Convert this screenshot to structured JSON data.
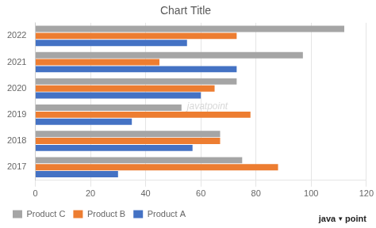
{
  "chart_data": {
    "type": "bar",
    "orientation": "horizontal",
    "title": "Chart Title",
    "categories": [
      "2017",
      "2018",
      "2019",
      "2020",
      "2021",
      "2022"
    ],
    "series": [
      {
        "name": "Product C",
        "color": "#A5A5A5",
        "values": [
          75,
          67,
          53,
          73,
          97,
          112
        ]
      },
      {
        "name": "Product B",
        "color": "#ED7D31",
        "values": [
          88,
          67,
          78,
          65,
          45,
          73
        ]
      },
      {
        "name": "Product A",
        "color": "#4472C4",
        "values": [
          30,
          57,
          35,
          60,
          73,
          55
        ]
      }
    ],
    "xlim": [
      0,
      120
    ],
    "xticks": [
      0,
      20,
      40,
      60,
      80,
      100,
      120
    ],
    "grid": true,
    "legend": "bottom",
    "annotations": [
      "javatpoint",
      "java",
      "▼",
      "point"
    ]
  }
}
